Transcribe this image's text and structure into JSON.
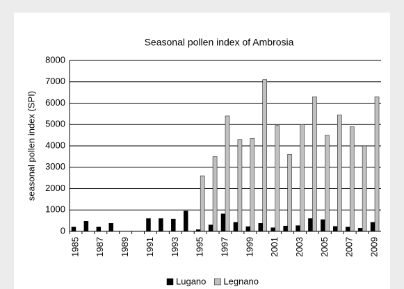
{
  "chart_data": {
    "type": "bar",
    "title": "Seasonal pollen index of Ambrosia",
    "y_label": "seasonal pollen index (SPI)",
    "categories": [
      "1985",
      null,
      "1987",
      null,
      "1989",
      null,
      "1991",
      null,
      "1993",
      null,
      "1995",
      null,
      "1997",
      null,
      "1999",
      null,
      "2001",
      null,
      "2003",
      null,
      "2005",
      null,
      "2007",
      null,
      "2009"
    ],
    "series": [
      {
        "name": "Lugano",
        "color": "#000000",
        "values": [
          200,
          480,
          200,
          380,
          null,
          null,
          600,
          600,
          580,
          950,
          80,
          300,
          820,
          420,
          220,
          380,
          170,
          250,
          270,
          600,
          550,
          230,
          200,
          150,
          420
        ]
      },
      {
        "name": "Legnano",
        "color": "#c0c0c0",
        "values": [
          null,
          null,
          null,
          null,
          null,
          null,
          null,
          null,
          null,
          null,
          2600,
          3500,
          5400,
          4300,
          4350,
          7100,
          4950,
          3600,
          5000,
          6300,
          4500,
          5450,
          4900,
          4000,
          6300
        ]
      }
    ],
    "ylim": [
      0,
      8000
    ],
    "yticks": [
      0,
      1000,
      2000,
      3000,
      4000,
      5000,
      6000,
      7000,
      8000
    ],
    "grid": true,
    "legend": "bottom"
  }
}
